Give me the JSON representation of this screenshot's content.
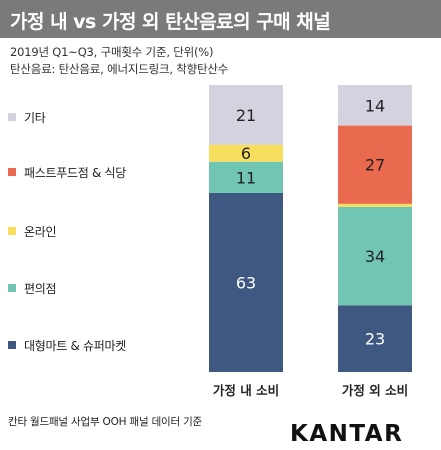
{
  "header": {
    "title": "가정 내 vs 가정 외 탄산음료의 구매 채널"
  },
  "subtitle_lines": [
    "2019년 Q1~Q3, 구매횟수 기준, 단위(%)",
    "탄산음료: 탄산음료, 에너지드링크, 착향탄산수"
  ],
  "legend": [
    {
      "label": "기타",
      "color": "#d5d2e0"
    },
    {
      "label": "패스트푸드점 & 식당",
      "color": "#e96a4f"
    },
    {
      "label": "온라인",
      "color": "#f7de5c"
    },
    {
      "label": "편의점",
      "color": "#71c6b3"
    },
    {
      "label": "대형마트 & 슈퍼마켓",
      "color": "#3e5882"
    }
  ],
  "chart_data": {
    "type": "bar",
    "stacked": true,
    "normalized_percent": true,
    "categories": [
      "가정 내 소비",
      "가정 외 소비"
    ],
    "series": [
      {
        "name": "대형마트 & 슈퍼마켓",
        "values": [
          63,
          23
        ],
        "color": "#3e5882"
      },
      {
        "name": "편의점",
        "values": [
          11,
          34
        ],
        "color": "#71c6b3"
      },
      {
        "name": "온라인",
        "values": [
          6,
          1
        ],
        "color": "#f7de5c"
      },
      {
        "name": "패스트푸드점 & 식당",
        "values": [
          0,
          27
        ],
        "color": "#e96a4f"
      },
      {
        "name": "기타",
        "values": [
          21,
          14
        ],
        "color": "#d5d2e0"
      }
    ],
    "value_labels": [
      [
        "63",
        "23"
      ],
      [
        "11",
        "34"
      ],
      [
        "6",
        ""
      ],
      [
        "",
        "27"
      ],
      [
        "21",
        "14"
      ]
    ],
    "title": "가정 내 vs 가정 외 탄산음료의 구매 채널",
    "xlabel": "",
    "ylabel": "",
    "legend_position": "left"
  },
  "footer": {
    "source": "칸타 월드패널 사업부 OOH 패널 데이터 기준",
    "logo": "KANTAR"
  }
}
